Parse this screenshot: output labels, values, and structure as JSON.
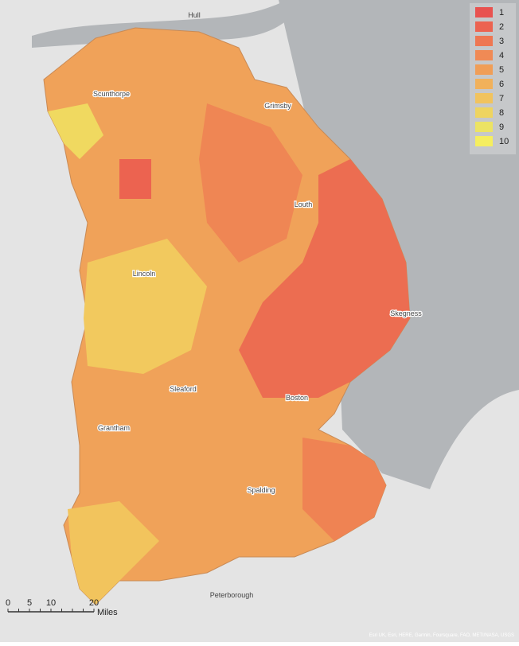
{
  "places": [
    "Hull",
    "Scunthorpe",
    "Grimsby",
    "Louth",
    "Lincoln",
    "Skegness",
    "Sleaford",
    "Boston",
    "Grantham",
    "Spalding",
    "Peterborough"
  ],
  "legend": {
    "items": [
      {
        "label": "1",
        "color": "#e8524f"
      },
      {
        "label": "2",
        "color": "#ec6350"
      },
      {
        "label": "3",
        "color": "#ee7752"
      },
      {
        "label": "4",
        "color": "#f08a55"
      },
      {
        "label": "5",
        "color": "#f09e57"
      },
      {
        "label": "6",
        "color": "#f1b15b"
      },
      {
        "label": "7",
        "color": "#f1c35e"
      },
      {
        "label": "8",
        "color": "#eed460"
      },
      {
        "label": "9",
        "color": "#ece363"
      },
      {
        "label": "10",
        "color": "#f5ee5f"
      }
    ]
  },
  "scale_bar": {
    "labels": [
      "0",
      "5",
      "10",
      "20"
    ],
    "unit": "Miles"
  },
  "attribution": "Esri UK, Esri, HERE, Garmin, Foursquare, FAO, METI/NASA, USGS"
}
